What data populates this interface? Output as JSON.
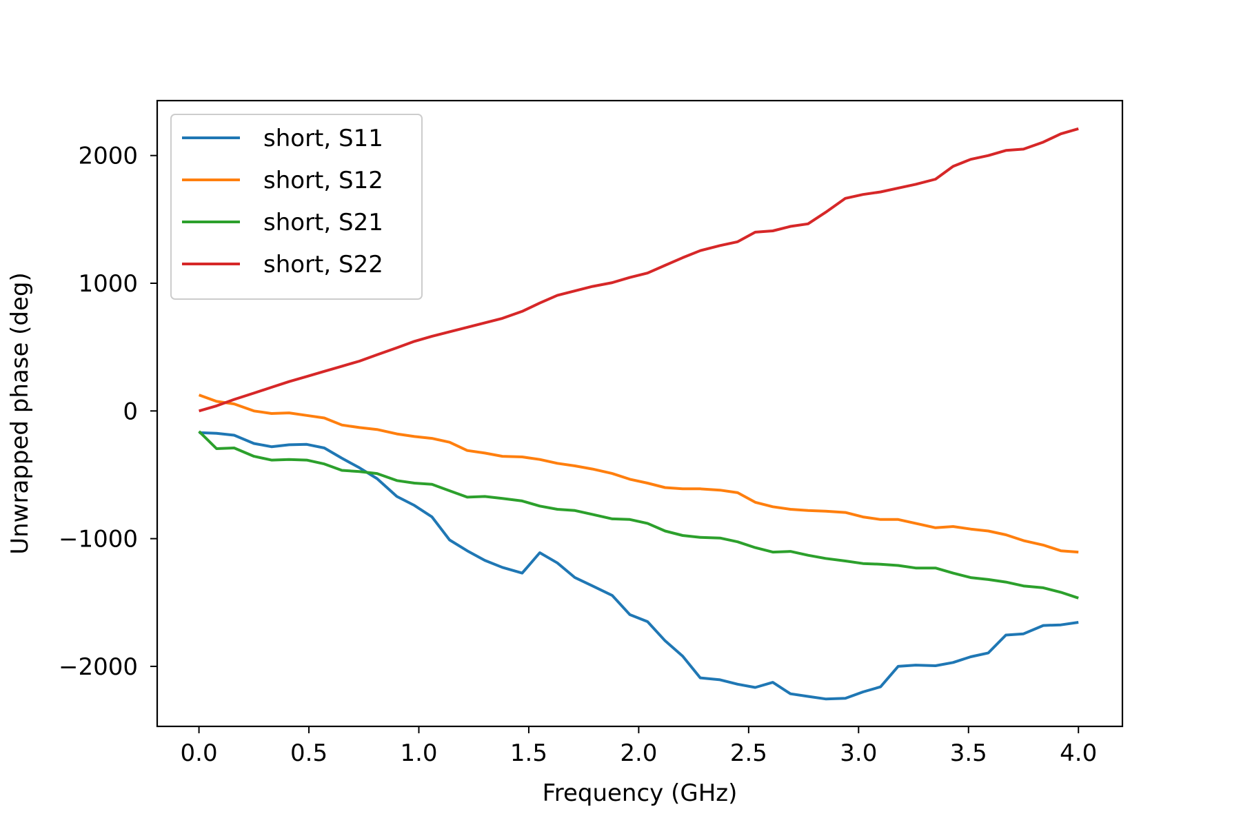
{
  "chart_data": {
    "type": "line",
    "title": "",
    "xlabel": "Frequency (GHz)",
    "ylabel": "Unwrapped phase (deg)",
    "xlim": [
      -0.19,
      4.2
    ],
    "ylim": [
      -2470,
      2430
    ],
    "xticks": [
      0.0,
      0.5,
      1.0,
      1.5,
      2.0,
      2.5,
      3.0,
      3.5,
      4.0
    ],
    "xtick_labels": [
      "0.0",
      "0.5",
      "1.0",
      "1.5",
      "2.0",
      "2.5",
      "3.0",
      "3.5",
      "4.0"
    ],
    "yticks": [
      -2000,
      -1000,
      0,
      1000,
      2000
    ],
    "ytick_labels": [
      "−2000",
      "−1000",
      "0",
      "1000",
      "2000"
    ],
    "grid": false,
    "legend_position": "top-left",
    "series": [
      {
        "name": "short, S11",
        "color": "#1f77b4",
        "x": [
          0.0,
          0.08,
          0.16,
          0.25,
          0.33,
          0.41,
          0.49,
          0.57,
          0.65,
          0.73,
          0.81,
          0.9,
          0.98,
          1.06,
          1.14,
          1.22,
          1.3,
          1.38,
          1.47,
          1.55,
          1.63,
          1.71,
          1.79,
          1.88,
          1.96,
          2.04,
          2.12,
          2.2,
          2.28,
          2.37,
          2.45,
          2.53,
          2.61,
          2.69,
          2.77,
          2.85,
          2.94,
          3.02,
          3.1,
          3.18,
          3.26,
          3.35,
          3.43,
          3.51,
          3.59,
          3.67,
          3.75,
          3.84,
          3.92,
          4.0
        ],
        "y": [
          -170,
          -175,
          -190,
          -255,
          -280,
          -265,
          -262,
          -290,
          -370,
          -445,
          -530,
          -670,
          -740,
          -830,
          -1010,
          -1095,
          -1170,
          -1225,
          -1270,
          -1110,
          -1190,
          -1305,
          -1370,
          -1445,
          -1595,
          -1650,
          -1800,
          -1920,
          -2090,
          -2105,
          -2140,
          -2165,
          -2125,
          -2215,
          -2235,
          -2255,
          -2250,
          -2200,
          -2160,
          -2000,
          -1990,
          -1995,
          -1970,
          -1925,
          -1895,
          -1755,
          -1745,
          -1680,
          -1675,
          -1655
        ]
      },
      {
        "name": "short, S12",
        "color": "#ff7f0e",
        "x": [
          0.0,
          0.08,
          0.16,
          0.25,
          0.33,
          0.41,
          0.49,
          0.57,
          0.65,
          0.73,
          0.81,
          0.9,
          0.98,
          1.06,
          1.14,
          1.22,
          1.3,
          1.38,
          1.47,
          1.55,
          1.63,
          1.71,
          1.79,
          1.88,
          1.96,
          2.04,
          2.12,
          2.2,
          2.28,
          2.37,
          2.45,
          2.53,
          2.61,
          2.69,
          2.77,
          2.85,
          2.94,
          3.02,
          3.1,
          3.18,
          3.26,
          3.35,
          3.43,
          3.51,
          3.59,
          3.67,
          3.75,
          3.84,
          3.92,
          4.0
        ],
        "y": [
          125,
          75,
          55,
          0,
          -20,
          -15,
          -35,
          -55,
          -110,
          -130,
          -145,
          -180,
          -200,
          -215,
          -245,
          -310,
          -330,
          -355,
          -360,
          -380,
          -410,
          -430,
          -455,
          -490,
          -535,
          -565,
          -600,
          -610,
          -610,
          -620,
          -640,
          -715,
          -750,
          -770,
          -780,
          -785,
          -795,
          -830,
          -850,
          -850,
          -880,
          -915,
          -905,
          -925,
          -940,
          -970,
          -1015,
          -1050,
          -1095,
          -1105
        ]
      },
      {
        "name": "short, S21",
        "color": "#2ca02c",
        "x": [
          0.0,
          0.08,
          0.16,
          0.25,
          0.33,
          0.41,
          0.49,
          0.57,
          0.65,
          0.73,
          0.81,
          0.9,
          0.98,
          1.06,
          1.14,
          1.22,
          1.3,
          1.38,
          1.47,
          1.55,
          1.63,
          1.71,
          1.79,
          1.88,
          1.96,
          2.04,
          2.12,
          2.2,
          2.28,
          2.37,
          2.45,
          2.53,
          2.61,
          2.69,
          2.77,
          2.85,
          2.94,
          3.02,
          3.1,
          3.18,
          3.26,
          3.35,
          3.43,
          3.51,
          3.59,
          3.67,
          3.75,
          3.84,
          3.92,
          4.0
        ],
        "y": [
          -160,
          -295,
          -290,
          -355,
          -385,
          -380,
          -385,
          -415,
          -465,
          -475,
          -490,
          -545,
          -565,
          -575,
          -625,
          -675,
          -670,
          -685,
          -705,
          -745,
          -770,
          -780,
          -810,
          -845,
          -850,
          -880,
          -940,
          -975,
          -990,
          -995,
          -1025,
          -1070,
          -1105,
          -1100,
          -1130,
          -1155,
          -1175,
          -1195,
          -1200,
          -1210,
          -1230,
          -1230,
          -1270,
          -1305,
          -1320,
          -1340,
          -1370,
          -1385,
          -1420,
          -1465
        ]
      },
      {
        "name": "short, S22",
        "color": "#d62728",
        "x": [
          0.0,
          0.08,
          0.16,
          0.25,
          0.33,
          0.41,
          0.49,
          0.57,
          0.65,
          0.73,
          0.81,
          0.9,
          0.98,
          1.06,
          1.14,
          1.22,
          1.3,
          1.38,
          1.47,
          1.55,
          1.63,
          1.71,
          1.79,
          1.88,
          1.96,
          2.04,
          2.12,
          2.2,
          2.28,
          2.37,
          2.45,
          2.53,
          2.61,
          2.69,
          2.77,
          2.85,
          2.94,
          3.02,
          3.1,
          3.18,
          3.26,
          3.35,
          3.43,
          3.51,
          3.59,
          3.67,
          3.75,
          3.84,
          3.92,
          4.0
        ],
        "y": [
          0,
          40,
          90,
          140,
          185,
          230,
          270,
          310,
          350,
          390,
          440,
          495,
          545,
          585,
          620,
          655,
          690,
          725,
          780,
          845,
          905,
          940,
          975,
          1005,
          1045,
          1080,
          1140,
          1200,
          1255,
          1295,
          1325,
          1400,
          1410,
          1445,
          1465,
          1555,
          1665,
          1695,
          1715,
          1745,
          1775,
          1815,
          1915,
          1970,
          2000,
          2040,
          2050,
          2105,
          2170,
          2210
        ]
      }
    ]
  }
}
